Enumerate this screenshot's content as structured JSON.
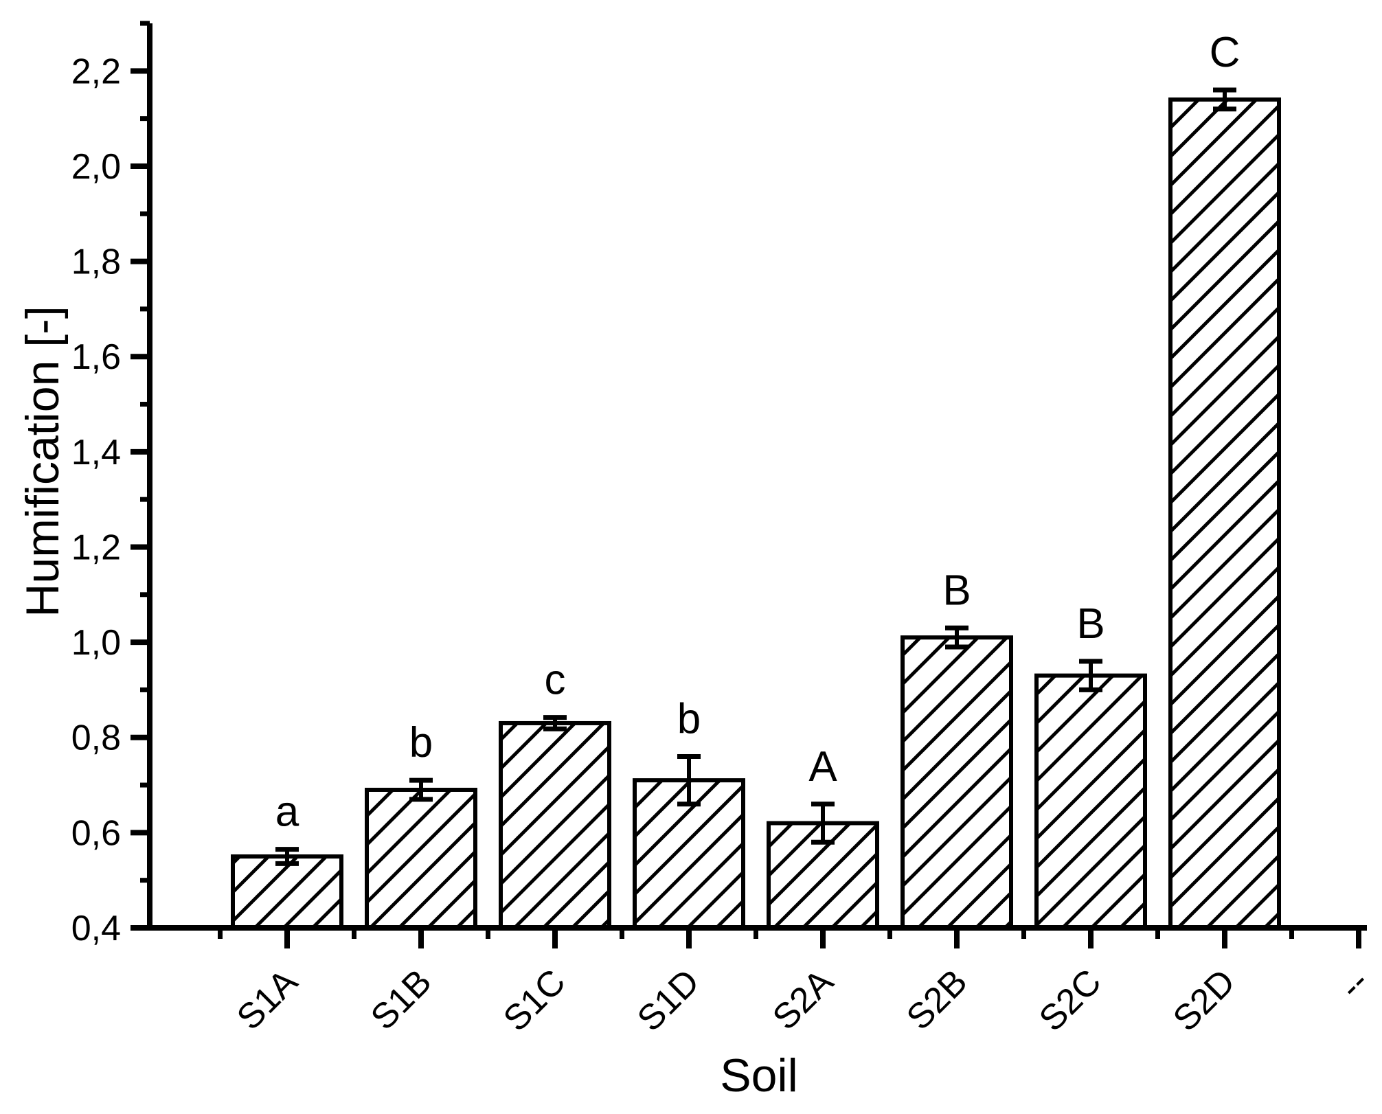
{
  "figure": {
    "background": "#ffffff",
    "ink_color": "#000000"
  },
  "chart_data": {
    "type": "bar",
    "title": "",
    "xlabel": "Soil",
    "ylabel": "Humification [-]",
    "categories": [
      "S1A",
      "S1B",
      "S1C",
      "S1D",
      "S2A",
      "S2B",
      "S2C",
      "S2D",
      "--"
    ],
    "values": [
      0.55,
      0.69,
      0.83,
      0.71,
      0.62,
      1.01,
      0.93,
      2.14
    ],
    "errors": [
      0.015,
      0.02,
      0.012,
      0.05,
      0.04,
      0.02,
      0.03,
      0.02
    ],
    "significance_letters": [
      "a",
      "b",
      "c",
      "b",
      "A",
      "B",
      "B",
      "C"
    ],
    "bar_fill": "diagonal-hatch",
    "bar_color": "#000000",
    "ylim": [
      0.4,
      2.3
    ],
    "yticks": {
      "values": [
        0.4,
        0.6,
        0.8,
        1.0,
        1.2,
        1.4,
        1.6,
        1.8,
        2.0,
        2.2
      ],
      "labels": [
        "0,4",
        "0,6",
        "0,8",
        "1,0",
        "1,2",
        "1,4",
        "1,6",
        "1,8",
        "2,0",
        "2,2"
      ]
    },
    "y_minor_ticks": [
      0.5,
      0.7,
      0.9,
      1.1,
      1.3,
      1.5,
      1.7,
      1.9,
      2.1,
      2.3
    ],
    "grid": false,
    "legend": null
  }
}
